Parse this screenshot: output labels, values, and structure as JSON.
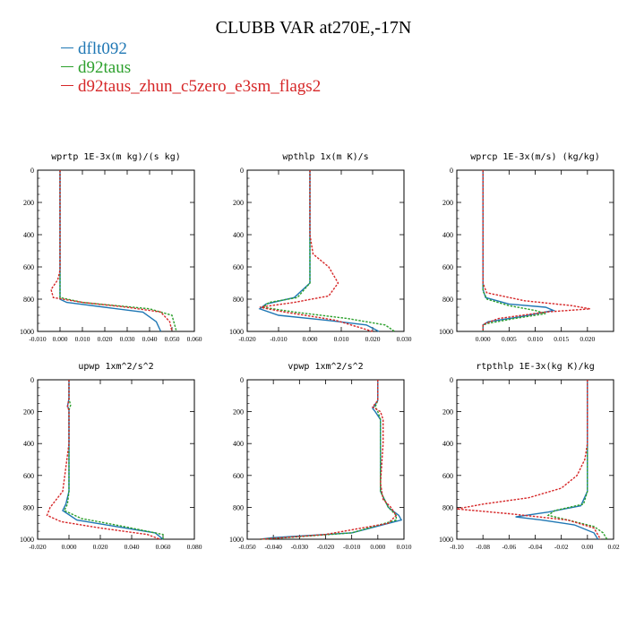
{
  "figure": {
    "title": "CLUBB VAR at270E,-17N",
    "legend": [
      {
        "name": "dflt092",
        "color": "#1f77b4"
      },
      {
        "name": "d92taus",
        "color": "#2ca02c"
      },
      {
        "name": "d92taus_zhun_c5zero_e3sm_flags2",
        "color": "#d62728"
      }
    ]
  },
  "chart_data": [
    {
      "type": "line",
      "title": "wprtp  1E-3x(m kg)/(s kg)",
      "xlim": [
        -0.01,
        0.06
      ],
      "ylim": [
        0,
        1000
      ],
      "y_inverted": true,
      "xticks": [
        "-0.010",
        "0.000",
        "0.010",
        "0.020",
        "0.030",
        "0.040",
        "0.050",
        "0.060"
      ],
      "xtick_values": [
        -0.01,
        0,
        0.01,
        0.02,
        0.03,
        0.04,
        0.05,
        0.06
      ],
      "yticks": [
        "0",
        "200",
        "400",
        "600",
        "800",
        "1000"
      ],
      "ytick_values": [
        0,
        200,
        400,
        600,
        800,
        1000
      ],
      "series": [
        {
          "name": "dflt092",
          "color": "#1f77b4",
          "dash": false,
          "x": [
            0,
            0,
            0,
            0,
            0,
            0.003,
            0.02,
            0.037,
            0.043,
            0.045
          ],
          "y": [
            0,
            400,
            700,
            780,
            800,
            820,
            850,
            880,
            940,
            1000
          ]
        },
        {
          "name": "d92taus",
          "color": "#2ca02c",
          "dash": true,
          "x": [
            0,
            0,
            0,
            0,
            0.01,
            0.025,
            0.04,
            0.05,
            0.052
          ],
          "y": [
            0,
            400,
            700,
            790,
            820,
            840,
            860,
            900,
            1000
          ]
        },
        {
          "name": "d92taus_zhun_c5zero_e3sm_flags2",
          "color": "#d62728",
          "dash": true,
          "x": [
            0,
            0,
            0,
            -0.001,
            -0.004,
            -0.003,
            0.01,
            0.03,
            0.045,
            0.049,
            0.05
          ],
          "y": [
            0,
            400,
            620,
            680,
            740,
            790,
            820,
            850,
            880,
            940,
            1000
          ]
        }
      ]
    },
    {
      "type": "line",
      "title": "wpthlp  1x(m K)/s",
      "xlim": [
        -0.02,
        0.03
      ],
      "ylim": [
        0,
        1000
      ],
      "y_inverted": true,
      "xticks": [
        "-0.020",
        "-0.010",
        "0.000",
        "0.010",
        "0.020",
        "0.030"
      ],
      "xtick_values": [
        -0.02,
        -0.01,
        0,
        0.01,
        0.02,
        0.03
      ],
      "yticks": [
        "0",
        "200",
        "400",
        "600",
        "800",
        "1000"
      ],
      "ytick_values": [
        0,
        200,
        400,
        600,
        800,
        1000
      ],
      "series": [
        {
          "name": "dflt092",
          "color": "#1f77b4",
          "dash": false,
          "x": [
            0,
            0,
            0,
            -0.005,
            -0.014,
            -0.016,
            -0.01,
            0.005,
            0.018,
            0.022
          ],
          "y": [
            0,
            400,
            700,
            790,
            830,
            860,
            900,
            930,
            960,
            1000
          ]
        },
        {
          "name": "d92taus",
          "color": "#2ca02c",
          "dash": true,
          "x": [
            0,
            0,
            0,
            -0.004,
            -0.013,
            -0.015,
            -0.005,
            0.012,
            0.024,
            0.027
          ],
          "y": [
            0,
            400,
            700,
            790,
            820,
            850,
            880,
            920,
            960,
            1000
          ]
        },
        {
          "name": "d92taus_zhun_c5zero_e3sm_flags2",
          "color": "#d62728",
          "dash": true,
          "x": [
            0,
            0,
            0.001,
            0.006,
            0.009,
            0.006,
            -0.005,
            -0.016,
            -0.008,
            0.008,
            0.02
          ],
          "y": [
            0,
            400,
            520,
            600,
            700,
            780,
            820,
            850,
            880,
            930,
            1000
          ]
        }
      ]
    },
    {
      "type": "line",
      "title": "wprcp  1E-3x(m/s) (kg/kg)",
      "xlim": [
        -0.005,
        0.025
      ],
      "ylim": [
        0,
        1000
      ],
      "y_inverted": true,
      "xticks": [
        "0.000",
        "0.005",
        "0.010",
        "0.015",
        "0.020"
      ],
      "xtick_values": [
        0,
        0.005,
        0.01,
        0.015,
        0.02
      ],
      "yticks": [
        "0",
        "200",
        "400",
        "600",
        "800",
        "1000"
      ],
      "ytick_values": [
        0,
        200,
        400,
        600,
        800,
        1000
      ],
      "series": [
        {
          "name": "dflt092",
          "color": "#1f77b4",
          "dash": false,
          "x": [
            0,
            0,
            0,
            0.0005,
            0.005,
            0.012,
            0.0135,
            0.007,
            0.001,
            0,
            0
          ],
          "y": [
            0,
            400,
            740,
            790,
            830,
            850,
            870,
            910,
            940,
            960,
            1000
          ]
        },
        {
          "name": "d92taus",
          "color": "#2ca02c",
          "dash": true,
          "x": [
            0,
            0,
            0,
            0.0008,
            0.005,
            0.01,
            0.012,
            0.006,
            0.001,
            0,
            0
          ],
          "y": [
            0,
            400,
            750,
            800,
            840,
            870,
            890,
            920,
            950,
            960,
            1000
          ]
        },
        {
          "name": "d92taus_zhun_c5zero_e3sm_flags2",
          "color": "#d62728",
          "dash": true,
          "x": [
            0,
            0,
            0,
            0.0007,
            0.008,
            0.017,
            0.0205,
            0.012,
            0.003,
            0.0005,
            0,
            0
          ],
          "y": [
            0,
            400,
            700,
            760,
            810,
            840,
            860,
            880,
            920,
            950,
            960,
            1000
          ]
        }
      ]
    },
    {
      "type": "line",
      "title": "upwp  1xm^2/s^2",
      "xlim": [
        -0.02,
        0.08
      ],
      "ylim": [
        0,
        1000
      ],
      "y_inverted": true,
      "xticks": [
        "-0.020",
        "0.000",
        "0.020",
        "0.040",
        "0.060",
        "0.080"
      ],
      "xtick_values": [
        -0.02,
        0,
        0.02,
        0.04,
        0.06,
        0.08
      ],
      "yticks": [
        "0",
        "200",
        "400",
        "600",
        "800",
        "1000"
      ],
      "ytick_values": [
        0,
        200,
        400,
        600,
        800,
        1000
      ],
      "series": [
        {
          "name": "dflt092",
          "color": "#1f77b4",
          "dash": false,
          "x": [
            0,
            0,
            -0.001,
            0,
            0,
            0,
            0,
            -0.002,
            -0.004,
            0.005,
            0.03,
            0.055,
            0.06
          ],
          "y": [
            0,
            120,
            165,
            185,
            210,
            400,
            700,
            780,
            820,
            880,
            920,
            960,
            1000
          ]
        },
        {
          "name": "d92taus",
          "color": "#2ca02c",
          "dash": true,
          "x": [
            0,
            0,
            0.001,
            0,
            0,
            0,
            0,
            -0.001,
            -0.003,
            0.008,
            0.035,
            0.06,
            0.06
          ],
          "y": [
            0,
            120,
            160,
            190,
            210,
            400,
            700,
            780,
            820,
            870,
            920,
            970,
            1000
          ]
        },
        {
          "name": "d92taus_zhun_c5zero_e3sm_flags2",
          "color": "#d62728",
          "dash": true,
          "x": [
            0,
            0,
            -0.001,
            0,
            0,
            0,
            -0.004,
            -0.012,
            -0.014,
            -0.005,
            0.02,
            0.05,
            0.058
          ],
          "y": [
            0,
            120,
            170,
            190,
            210,
            400,
            700,
            800,
            850,
            890,
            930,
            970,
            1000
          ]
        }
      ]
    },
    {
      "type": "line",
      "title": "vpwp  1xm^2/s^2",
      "xlim": [
        -0.05,
        0.01
      ],
      "ylim": [
        0,
        1000
      ],
      "y_inverted": true,
      "xticks": [
        "-0.050",
        "-0.040",
        "-0.030",
        "-0.020",
        "-0.010",
        "0.000",
        "0.010"
      ],
      "xtick_values": [
        -0.05,
        -0.04,
        -0.03,
        -0.02,
        -0.01,
        0,
        0.01
      ],
      "yticks": [
        "0",
        "200",
        "400",
        "600",
        "800",
        "1000"
      ],
      "ytick_values": [
        0,
        200,
        400,
        600,
        800,
        1000
      ],
      "series": [
        {
          "name": "dflt092",
          "color": "#1f77b4",
          "dash": false,
          "x": [
            0,
            0,
            -0.002,
            -0.001,
            0.001,
            0.001,
            0.001,
            0.004,
            0.008,
            0.009,
            -0.01,
            -0.04,
            -0.045
          ],
          "y": [
            0,
            130,
            180,
            200,
            250,
            400,
            700,
            800,
            850,
            880,
            960,
            990,
            1000
          ]
        },
        {
          "name": "d92taus",
          "color": "#2ca02c",
          "dash": true,
          "x": [
            0,
            0,
            -0.001,
            0,
            0.001,
            0.001,
            0.001,
            0.004,
            0.007,
            0.007,
            -0.01,
            -0.035,
            -0.045
          ],
          "y": [
            0,
            130,
            170,
            200,
            250,
            400,
            700,
            800,
            850,
            880,
            960,
            990,
            1000
          ]
        },
        {
          "name": "d92taus_zhun_c5zero_e3sm_flags2",
          "color": "#d62728",
          "dash": true,
          "x": [
            0,
            0,
            -0.002,
            0.001,
            0.002,
            0.002,
            0.001,
            0.002,
            0.005,
            0.007,
            0.004,
            -0.02,
            -0.04,
            -0.045
          ],
          "y": [
            0,
            130,
            170,
            200,
            250,
            400,
            650,
            750,
            800,
            850,
            900,
            970,
            995,
            1000
          ]
        }
      ]
    },
    {
      "type": "line",
      "title": "rtpthlp  1E-3x(kg K)/kg",
      "xlim": [
        -0.1,
        0.02
      ],
      "ylim": [
        0,
        1000
      ],
      "y_inverted": true,
      "xticks": [
        "-0.10",
        "-0.08",
        "-0.06",
        "-0.04",
        "-0.02",
        "0.00",
        "0.02"
      ],
      "xtick_values": [
        -0.1,
        -0.08,
        -0.06,
        -0.04,
        -0.02,
        0,
        0.02
      ],
      "yticks": [
        "0",
        "200",
        "400",
        "600",
        "800",
        "1000"
      ],
      "ytick_values": [
        0,
        200,
        400,
        600,
        800,
        1000
      ],
      "series": [
        {
          "name": "dflt092",
          "color": "#1f77b4",
          "dash": false,
          "x": [
            0,
            0,
            0,
            -0.005,
            -0.03,
            -0.055,
            -0.035,
            -0.01,
            0.005,
            0.008
          ],
          "y": [
            0,
            400,
            700,
            790,
            830,
            860,
            880,
            910,
            960,
            1000
          ]
        },
        {
          "name": "d92taus",
          "color": "#2ca02c",
          "dash": true,
          "x": [
            0,
            0,
            0,
            -0.003,
            -0.025,
            -0.03,
            -0.015,
            0.005,
            0.012,
            0.015
          ],
          "y": [
            0,
            400,
            700,
            780,
            820,
            850,
            880,
            920,
            960,
            1000
          ]
        },
        {
          "name": "d92taus_zhun_c5zero_e3sm_flags2",
          "color": "#d62728",
          "dash": true,
          "x": [
            0,
            0,
            -0.002,
            -0.008,
            -0.02,
            -0.045,
            -0.08,
            -0.1,
            -0.06,
            -0.015,
            0.005,
            0.01
          ],
          "y": [
            0,
            400,
            500,
            600,
            680,
            740,
            780,
            810,
            840,
            880,
            930,
            1000
          ]
        }
      ]
    }
  ]
}
